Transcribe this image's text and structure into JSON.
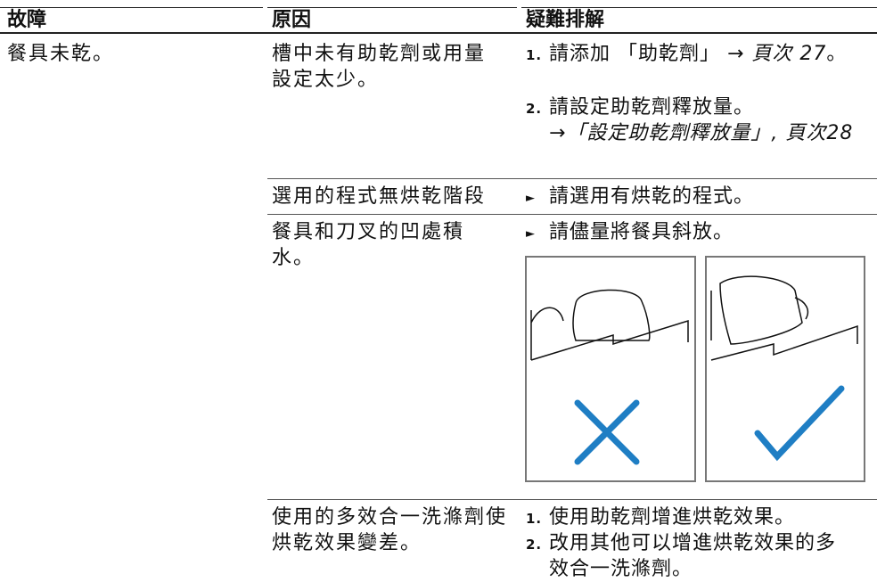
{
  "table": {
    "headers": [
      "故障",
      "原因",
      "疑難排解"
    ],
    "rows": [
      {
        "fault": "餐具未乾。",
        "causes": [
          {
            "cause": "槽中未有助乾劑或用量設定太少。",
            "remedies": [
              {
                "marker": "1.",
                "text": "請添加 「助乾劑」 →",
                "ref": "頁次 27",
                "tail": "。"
              },
              {
                "marker": "2.",
                "text": "請設定助乾劑釋放量。",
                "ref": "→「設定助乾劑釋放量」, 頁次28"
              }
            ]
          },
          {
            "cause": "選用的程式無烘乾階段",
            "remedies": [
              {
                "marker": "►",
                "text": "請選用有烘乾的程式。"
              }
            ]
          },
          {
            "cause": "餐具和刀叉的凹處積水。",
            "remedies": [
              {
                "marker": "►",
                "text": "請儘量將餐具斜放。"
              }
            ]
          },
          {
            "cause": "使用的多效合一洗滌劑使烘乾效果變差。",
            "remedies": [
              {
                "marker": "1.",
                "text": "使用助乾劑增進烘乾效果。"
              },
              {
                "marker": "2.",
                "text": "改用其他可以增進烘乾效果的多效合一洗滌劑。"
              }
            ]
          }
        ]
      }
    ]
  }
}
